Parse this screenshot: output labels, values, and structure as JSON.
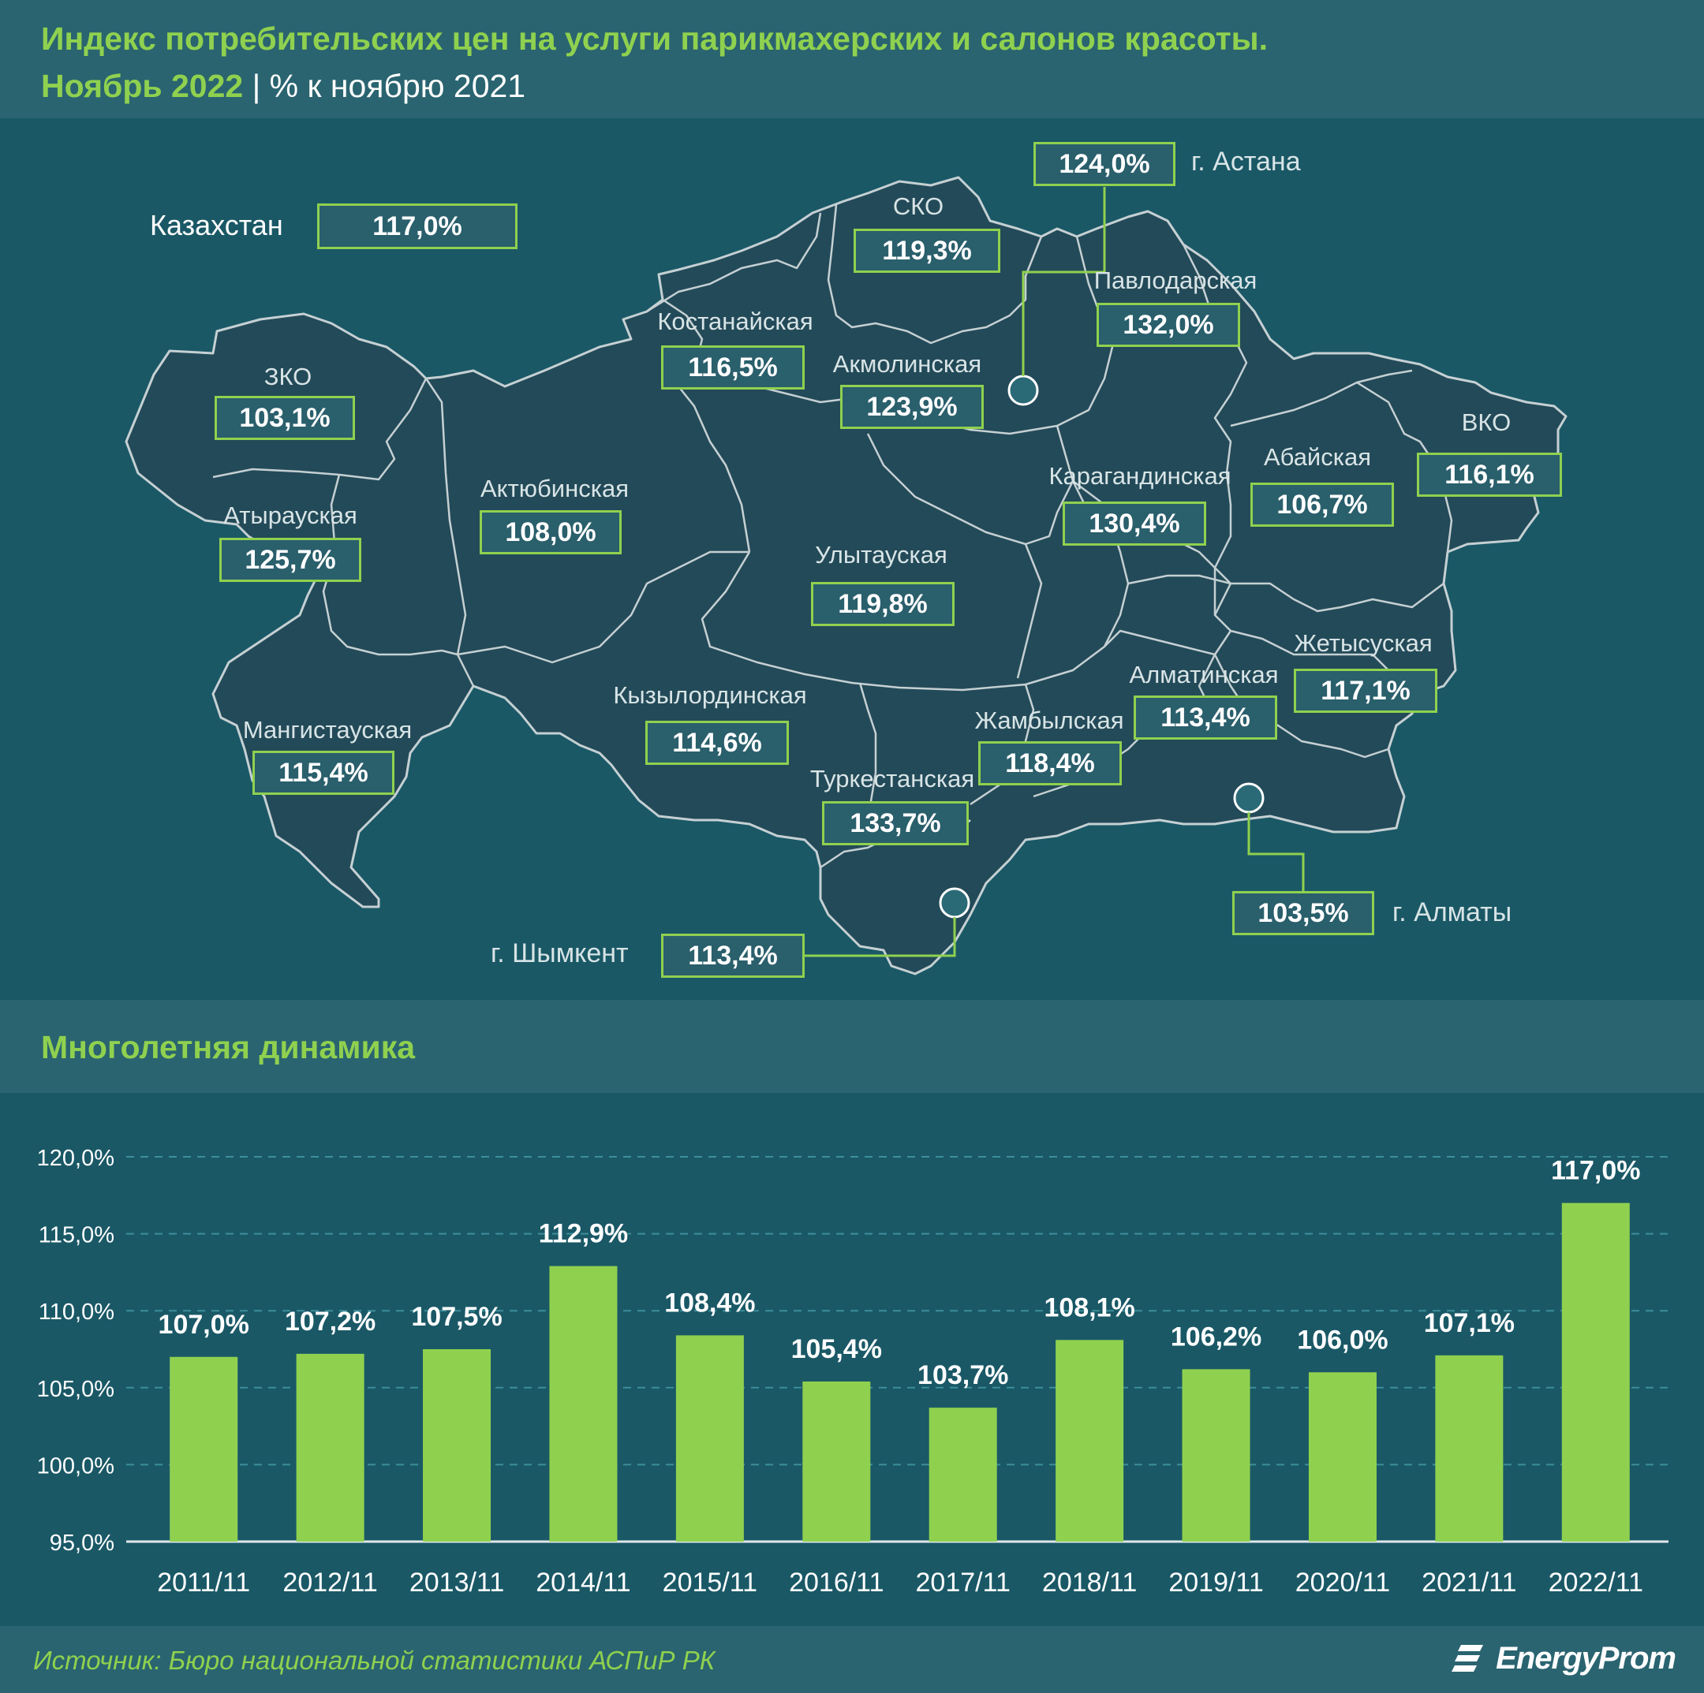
{
  "header": {
    "title": "Индекс потребительских цен на услуги парикмахерских и салонов красоты.",
    "subtitle_green": "Ноябрь 2022",
    "subtitle_sep": " | ",
    "subtitle_white": "% к ноябрю 2021"
  },
  "map": {
    "kazakhstan": {
      "label": "Казахстан",
      "value": "117,0%"
    },
    "regions": [
      {
        "name": "ЗКО",
        "value": "103,1%"
      },
      {
        "name": "Атырауская",
        "value": "125,7%"
      },
      {
        "name": "Мангистауская",
        "value": "115,4%"
      },
      {
        "name": "Актюбинская",
        "value": "108,0%"
      },
      {
        "name": "Костанайская",
        "value": "116,5%"
      },
      {
        "name": "СКО",
        "value": "119,3%"
      },
      {
        "name": "Акмолинская",
        "value": "123,9%"
      },
      {
        "name": "Павлодарская",
        "value": "132,0%"
      },
      {
        "name": "Карагандинская",
        "value": "130,4%"
      },
      {
        "name": "Улытауская",
        "value": "119,8%"
      },
      {
        "name": "Кызылординская",
        "value": "114,6%"
      },
      {
        "name": "Туркестанская",
        "value": "133,7%"
      },
      {
        "name": "Жамбылская",
        "value": "118,4%"
      },
      {
        "name": "Алматинская",
        "value": "113,4%"
      },
      {
        "name": "Жетысуская",
        "value": "117,1%"
      },
      {
        "name": "Абайская",
        "value": "106,7%"
      },
      {
        "name": "ВКО",
        "value": "116,1%"
      }
    ],
    "cities": [
      {
        "name": "г. Астана",
        "value": "124,0%"
      },
      {
        "name": "г. Алматы",
        "value": "103,5%"
      },
      {
        "name": "г. Шымкент",
        "value": "113,4%"
      }
    ],
    "colors": {
      "land": "#234a58",
      "border": "#c5d0d3",
      "accent": "#8fd14f"
    }
  },
  "dynamics": {
    "title": "Многолетняя динамика"
  },
  "chart_data": {
    "type": "bar",
    "categories": [
      "2011/11",
      "2012/11",
      "2013/11",
      "2014/11",
      "2015/11",
      "2016/11",
      "2017/11",
      "2018/11",
      "2019/11",
      "2020/11",
      "2021/11",
      "2022/11"
    ],
    "values": [
      107.0,
      107.2,
      107.5,
      112.9,
      108.4,
      105.4,
      103.7,
      108.1,
      106.2,
      106.0,
      107.1,
      117.0
    ],
    "value_labels": [
      "107,0%",
      "107,2%",
      "107,5%",
      "112,9%",
      "108,4%",
      "105,4%",
      "103,7%",
      "108,1%",
      "106,2%",
      "106,0%",
      "107,1%",
      "117,0%"
    ],
    "yticks": [
      95,
      100,
      105,
      110,
      115,
      120
    ],
    "ytick_labels": [
      "95,0%",
      "100,0%",
      "105,0%",
      "110,0%",
      "115,0%",
      "120,0%"
    ],
    "ylim": [
      95,
      120
    ],
    "grid": true,
    "bar_color": "#8fd14f"
  },
  "footer": {
    "source": "Источник: Бюро национальной статистики АСПиР РК",
    "logo": "EnergyProm"
  }
}
